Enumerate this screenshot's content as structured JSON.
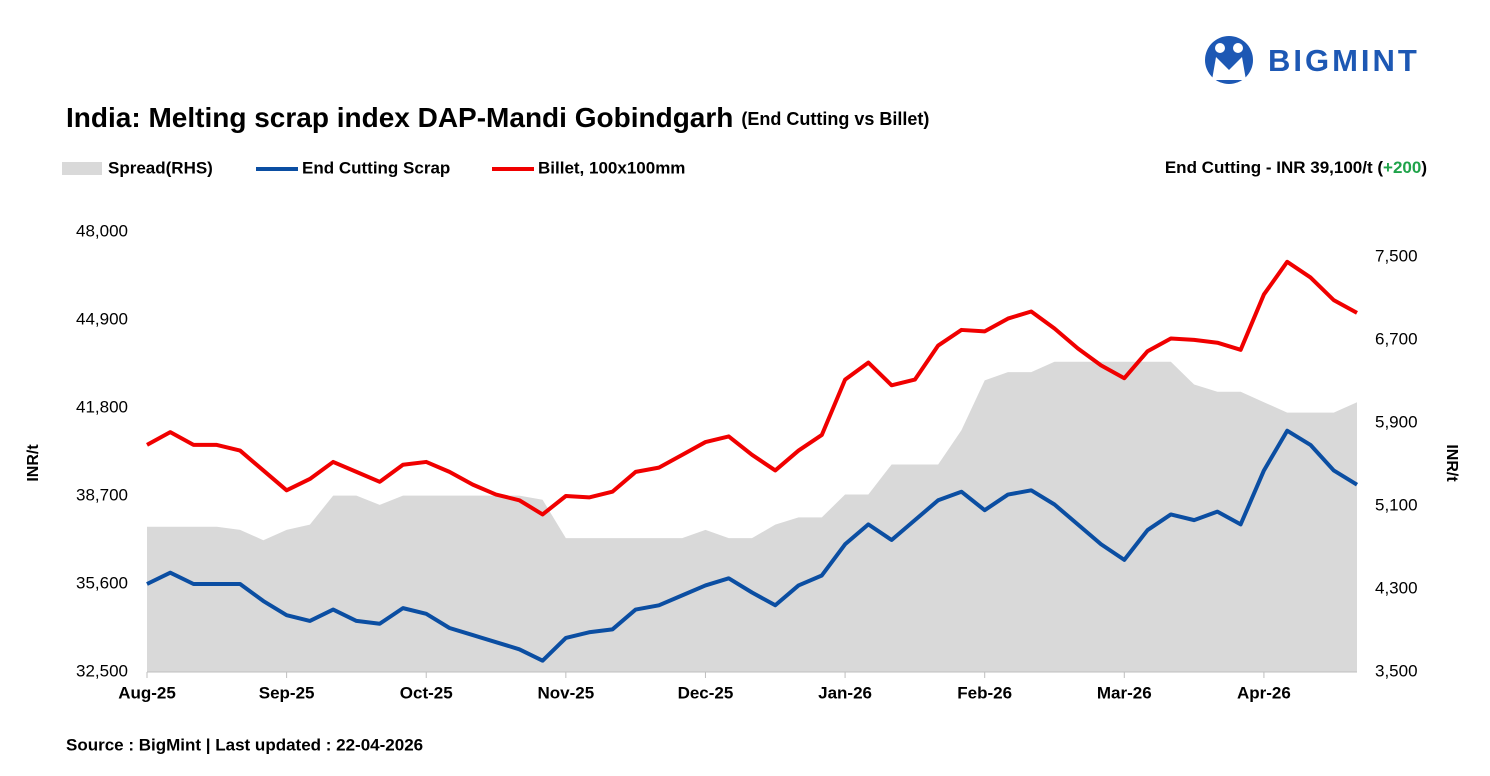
{
  "logo": "BIGMINT",
  "source": "Source : BigMint | Last updated : 22-04-2026",
  "chart_data": {
    "type": "line",
    "title": "India: Melting scrap index DAP-Mandi Gobindgarh",
    "subtitle": "(End Cutting vs Billet)",
    "annotation": {
      "text": "End Cutting - INR 39,100/t (",
      "change": "+200",
      "change_color": "#1fa34a",
      "close": ")"
    },
    "y_label": "INR/t",
    "y2_label": "INR/t",
    "categories": [
      "Aug-25",
      null,
      null,
      null,
      null,
      null,
      "Sep-25",
      null,
      null,
      null,
      null,
      null,
      "Oct-25",
      null,
      null,
      null,
      null,
      null,
      "Nov-25",
      null,
      null,
      null,
      null,
      null,
      "Dec-25",
      null,
      null,
      null,
      null,
      null,
      "Jan-26",
      null,
      null,
      null,
      null,
      null,
      "Feb-26",
      null,
      null,
      null,
      null,
      null,
      "Mar-26",
      null,
      null,
      null,
      null,
      null,
      "Apr-26",
      null,
      null,
      null,
      null
    ],
    "series": [
      {
        "name": "Spread(RHS)",
        "color": "#d9d9d9",
        "axis": "y2",
        "kind": "area",
        "values": [
          4900,
          4900,
          4900,
          4900,
          4870,
          4770,
          4870,
          4920,
          5200,
          5200,
          5110,
          5200,
          5200,
          5200,
          5200,
          5200,
          5200,
          5160,
          4790,
          4790,
          4790,
          4790,
          4790,
          4790,
          4870,
          4790,
          4790,
          4920,
          4990,
          4990,
          5210,
          5210,
          5500,
          5500,
          5500,
          5830,
          6310,
          6390,
          6390,
          6490,
          6490,
          6490,
          6490,
          6490,
          6490,
          6270,
          6200,
          6200,
          6100,
          6000,
          6000,
          6000,
          6100
        ]
      },
      {
        "name": "End Cutting Scrap",
        "color": "#0b4ea2",
        "kind": "line",
        "values": [
          35600,
          36000,
          35600,
          35600,
          35600,
          35000,
          34500,
          34300,
          34700,
          34300,
          34200,
          34750,
          34550,
          34050,
          33800,
          33550,
          33300,
          32900,
          33700,
          33900,
          34000,
          34700,
          34850,
          35200,
          35550,
          35800,
          35300,
          34850,
          35550,
          35900,
          37000,
          37700,
          37150,
          37850,
          38550,
          38850,
          38200,
          38750,
          38900,
          38400,
          37700,
          37000,
          36450,
          37500,
          38050,
          37850,
          38150,
          37700,
          39600,
          41000,
          40500,
          39600,
          39100
        ]
      },
      {
        "name": "Billet, 100x100mm",
        "color": "#f00000",
        "kind": "line",
        "values": [
          40500,
          40950,
          40500,
          40500,
          40300,
          39600,
          38900,
          39300,
          39900,
          39550,
          39200,
          39800,
          39900,
          39550,
          39100,
          38750,
          38550,
          38050,
          38700,
          38650,
          38850,
          39550,
          39700,
          40150,
          40600,
          40800,
          40150,
          39600,
          40300,
          40850,
          42800,
          43400,
          42600,
          42800,
          44000,
          44550,
          44500,
          44950,
          45200,
          44600,
          43900,
          43300,
          42850,
          43800,
          44250,
          44200,
          44100,
          43850,
          45800,
          46950,
          46400,
          45600,
          45150
        ]
      }
    ],
    "ylim": [
      32500,
      48000
    ],
    "yticks": [
      {
        "value": 32500,
        "label": "32,500"
      },
      {
        "value": 35600,
        "label": "35,600"
      },
      {
        "value": 38700,
        "label": "38,700"
      },
      {
        "value": 41800,
        "label": "41,800"
      },
      {
        "value": 44900,
        "label": "44,900"
      },
      {
        "value": 48000,
        "label": "48,000"
      }
    ],
    "y2lim": [
      3500,
      7740
    ],
    "y2ticks": [
      {
        "value": 3500,
        "label": "3,500"
      },
      {
        "value": 4300,
        "label": "4,300"
      },
      {
        "value": 5100,
        "label": "5,100"
      },
      {
        "value": 5900,
        "label": "5,900"
      },
      {
        "value": 6700,
        "label": "6,700"
      },
      {
        "value": 7500,
        "label": "7,500"
      }
    ],
    "grid": false
  }
}
